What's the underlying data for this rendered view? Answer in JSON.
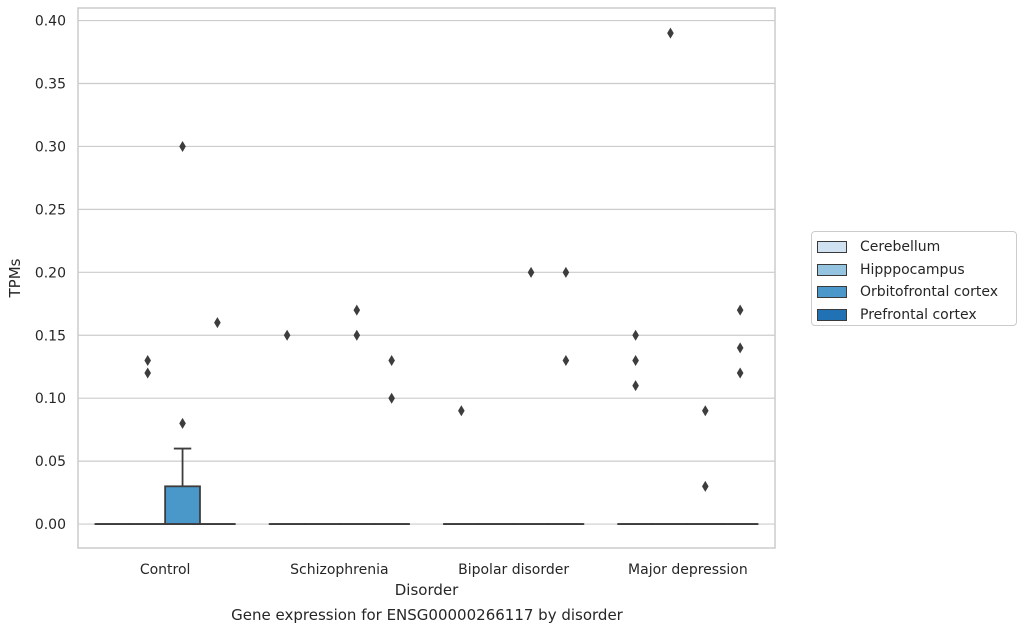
{
  "caption": "Gene expression for ENSG00000266117 by disorder",
  "chart_data": {
    "type": "box",
    "xlabel": "Disorder",
    "ylabel": "TPMs",
    "ylim": [
      -0.019,
      0.41
    ],
    "yticks": [
      0.0,
      0.05,
      0.1,
      0.15,
      0.2,
      0.25,
      0.3,
      0.35,
      0.4
    ],
    "ytick_labels": [
      "0.00",
      "0.05",
      "0.10",
      "0.15",
      "0.20",
      "0.25",
      "0.30",
      "0.35",
      "0.40"
    ],
    "grid": true,
    "legend_position": "right",
    "categories": [
      "Control",
      "Schizophrenia",
      "Bipolar disorder",
      "Major depression"
    ],
    "series": [
      {
        "name": "Cerebellum",
        "color": "#d0e1f2",
        "boxes": [
          {
            "q1": 0,
            "median": 0,
            "q3": 0,
            "whisker_low": 0,
            "whisker_high": 0,
            "outliers": []
          },
          {
            "q1": 0,
            "median": 0,
            "q3": 0,
            "whisker_low": 0,
            "whisker_high": 0,
            "outliers": [
              0.15
            ]
          },
          {
            "q1": 0,
            "median": 0,
            "q3": 0,
            "whisker_low": 0,
            "whisker_high": 0,
            "outliers": [
              0.09
            ]
          },
          {
            "q1": 0,
            "median": 0,
            "q3": 0,
            "whisker_low": 0,
            "whisker_high": 0,
            "outliers": [
              0.15,
              0.13,
              0.11
            ]
          }
        ]
      },
      {
        "name": "Hipppocampus",
        "color": "#94c4df",
        "boxes": [
          {
            "q1": 0,
            "median": 0,
            "q3": 0,
            "whisker_low": 0,
            "whisker_high": 0,
            "outliers": [
              0.13,
              0.12
            ]
          },
          {
            "q1": 0,
            "median": 0,
            "q3": 0,
            "whisker_low": 0,
            "whisker_high": 0,
            "outliers": []
          },
          {
            "q1": 0,
            "median": 0,
            "q3": 0,
            "whisker_low": 0,
            "whisker_high": 0,
            "outliers": []
          },
          {
            "q1": 0,
            "median": 0,
            "q3": 0,
            "whisker_low": 0,
            "whisker_high": 0,
            "outliers": [
              0.39
            ]
          }
        ]
      },
      {
        "name": "Orbitofrontal cortex",
        "color": "#4a98c9",
        "boxes": [
          {
            "q1": 0,
            "median": 0,
            "q3": 0.03,
            "whisker_low": 0,
            "whisker_high": 0.06,
            "outliers": [
              0.3,
              0.08
            ]
          },
          {
            "q1": 0,
            "median": 0,
            "q3": 0,
            "whisker_low": 0,
            "whisker_high": 0,
            "outliers": [
              0.17,
              0.15
            ]
          },
          {
            "q1": 0,
            "median": 0,
            "q3": 0,
            "whisker_low": 0,
            "whisker_high": 0,
            "outliers": [
              0.2
            ]
          },
          {
            "q1": 0,
            "median": 0,
            "q3": 0,
            "whisker_low": 0,
            "whisker_high": 0,
            "outliers": [
              0.09,
              0.03
            ]
          }
        ]
      },
      {
        "name": "Prefrontal cortex",
        "color": "#2171b5",
        "boxes": [
          {
            "q1": 0,
            "median": 0,
            "q3": 0,
            "whisker_low": 0,
            "whisker_high": 0,
            "outliers": [
              0.16
            ]
          },
          {
            "q1": 0,
            "median": 0,
            "q3": 0,
            "whisker_low": 0,
            "whisker_high": 0,
            "outliers": [
              0.13,
              0.1
            ]
          },
          {
            "q1": 0,
            "median": 0,
            "q3": 0,
            "whisker_low": 0,
            "whisker_high": 0,
            "outliers": [
              0.2,
              0.13
            ]
          },
          {
            "q1": 0,
            "median": 0,
            "q3": 0,
            "whisker_low": 0,
            "whisker_high": 0,
            "outliers": [
              0.17,
              0.14,
              0.12
            ]
          }
        ]
      }
    ]
  }
}
